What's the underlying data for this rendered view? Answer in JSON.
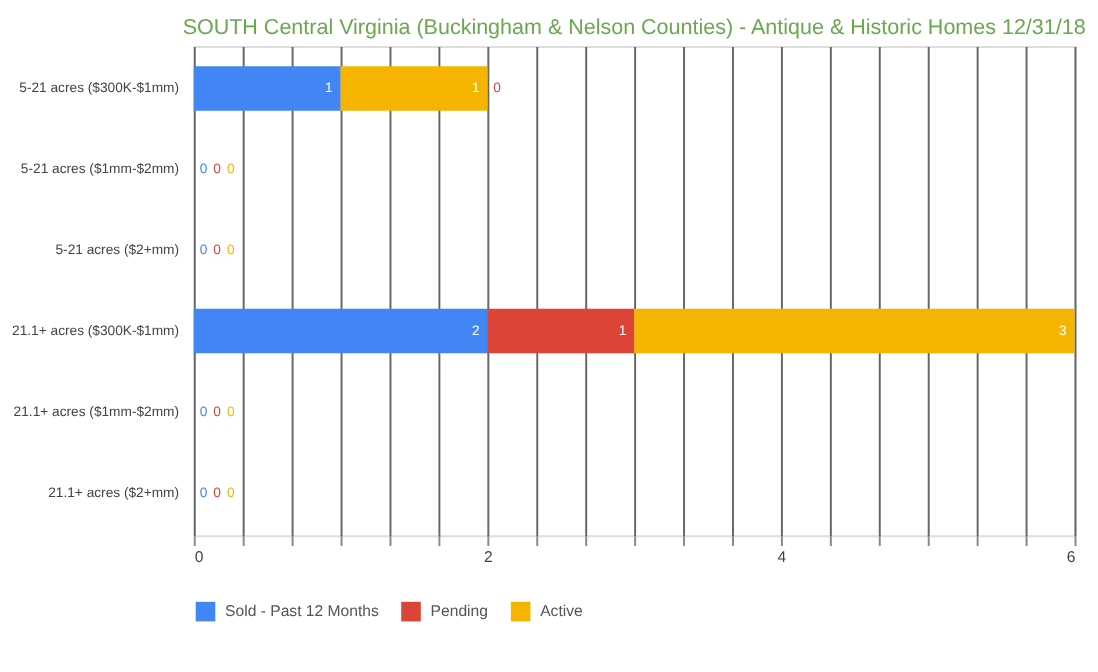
{
  "chart_data": {
    "type": "bar",
    "orientation": "horizontal",
    "stacked": true,
    "title": "SOUTH Central Virginia (Buckingham & Nelson Counties) - Antique & Historic Homes 12/31/18",
    "categories": [
      "5-21 acres ($300K-$1mm)",
      "5-21 acres ($1mm-$2mm)",
      "5-21 acres ($2+mm)",
      "21.1+ acres ($300K-$1mm)",
      "21.1+ acres ($1mm-$2mm)",
      "21.1+ acres ($2+mm)"
    ],
    "series": [
      {
        "name": "Sold - Past 12 Months",
        "color": "#4285f4",
        "values": [
          1,
          0,
          0,
          2,
          0,
          0
        ]
      },
      {
        "name": "Pending",
        "color": "#db4437",
        "values": [
          0,
          0,
          0,
          1,
          0,
          0
        ]
      },
      {
        "name": "Active",
        "color": "#f4b400",
        "values": [
          1,
          0,
          0,
          3,
          0,
          0
        ]
      }
    ],
    "xlim": [
      0,
      6
    ],
    "xticks": [
      0,
      {
        "value": 0.333,
        "label": null
      },
      {
        "value": 0.667,
        "label": null
      },
      {
        "value": 1,
        "label": null
      },
      {
        "value": 1.333,
        "label": null
      },
      {
        "value": 1.667,
        "label": null
      },
      2,
      {
        "value": 2.333,
        "label": null
      },
      {
        "value": 2.667,
        "label": null
      },
      {
        "value": 3,
        "label": null
      },
      {
        "value": 3.333,
        "label": null
      },
      {
        "value": 3.667,
        "label": null
      },
      4,
      {
        "value": 4.333,
        "label": null
      },
      {
        "value": 4.667,
        "label": null
      },
      {
        "value": 5,
        "label": null
      },
      {
        "value": 5.333,
        "label": null
      },
      {
        "value": 5.667,
        "label": null
      },
      6
    ],
    "grid": "x",
    "legend": "bottom",
    "data_labels": true
  }
}
